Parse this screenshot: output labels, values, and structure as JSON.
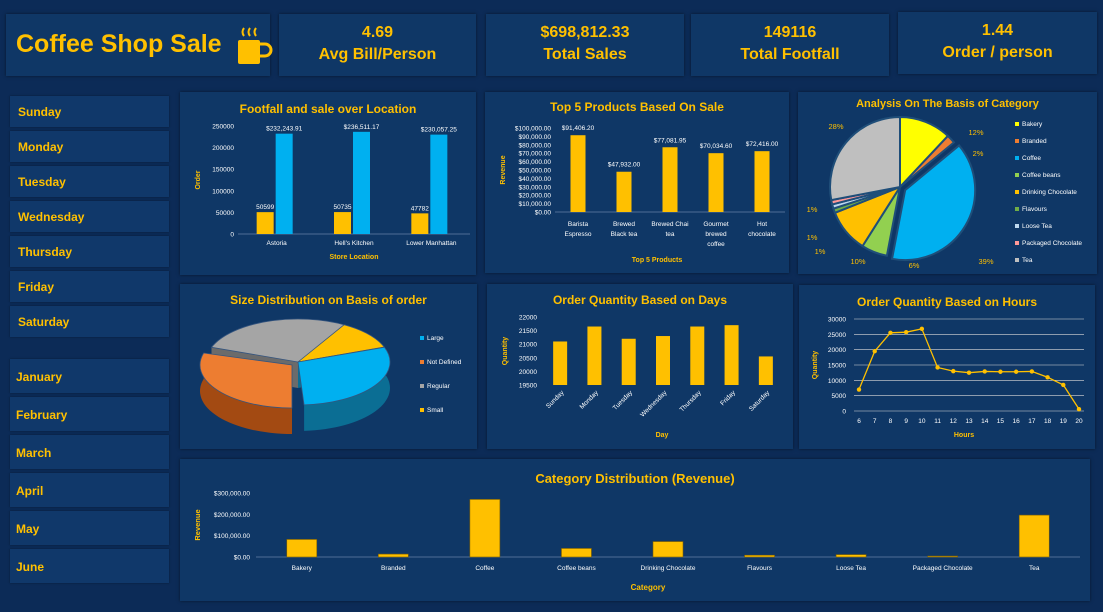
{
  "header": {
    "title": "Coffee Shop Sale",
    "cup_icon": "coffee-cup-icon"
  },
  "kpis": [
    {
      "value": "4.69",
      "label": "Avg Bill/Person"
    },
    {
      "value": "$698,812.33",
      "label": "Total Sales"
    },
    {
      "value": "149116",
      "label": "Total Footfall"
    },
    {
      "value": "1.44",
      "label": "Order / person"
    }
  ],
  "days_slicer": [
    "Sunday",
    "Monday",
    "Tuesday",
    "Wednesday",
    "Thursday",
    "Friday",
    "Saturday"
  ],
  "months_slicer": [
    "January",
    "February",
    "March",
    "April",
    "May",
    "June"
  ],
  "colors": {
    "gold": "#ffc000",
    "blue": "#00b0f0",
    "panel": "#0f3766",
    "bg": "#0c2b57"
  },
  "chart_data": [
    {
      "id": "footfall",
      "type": "bar",
      "title": "Footfall and sale over Location",
      "xlabel": "Store Location",
      "ylabel": "Order",
      "categories": [
        "Astoria",
        "Hell's Kitchen",
        "Lower Manhattan"
      ],
      "series": [
        {
          "values": [
            50599,
            50735,
            47782
          ],
          "labels": [
            "50599",
            "50735",
            "47782"
          ]
        },
        {
          "values": [
            232243.91,
            236511.17,
            230057.25
          ],
          "labels": [
            "$232,243.91",
            "$236,511.17",
            "$230,057.25"
          ]
        }
      ],
      "yticks": [
        "0",
        "50000",
        "100000",
        "150000",
        "200000",
        "250000"
      ],
      "ylim": [
        0,
        250000
      ]
    },
    {
      "id": "top5",
      "type": "bar",
      "title": "Top 5 Products Based On Sale",
      "xlabel": "Top 5 Products",
      "ylabel": "Revenue",
      "categories": [
        [
          "Barista",
          "Espresso"
        ],
        [
          "Brewed",
          "Black tea"
        ],
        [
          "Brewed Chai",
          "tea"
        ],
        [
          "Gourmet",
          "brewed",
          "coffee"
        ],
        [
          "Hot",
          "chocolate"
        ]
      ],
      "values": [
        91406.2,
        47932.0,
        77081.95,
        70034.6,
        72416.0
      ],
      "labels": [
        "$91,406.20",
        "$47,932.00",
        "$77,081.95",
        "$70,034.60",
        "$72,416.00"
      ],
      "yticks": [
        "$0.00",
        "$10,000.00",
        "$20,000.00",
        "$30,000.00",
        "$40,000.00",
        "$50,000.00",
        "$60,000.00",
        "$70,000.00",
        "$80,000.00",
        "$90,000.00",
        "$100,000.00"
      ],
      "ylim": [
        0,
        100000
      ]
    },
    {
      "id": "category_pie",
      "type": "pie",
      "title": "Analysis On The Basis of Category",
      "categories": [
        "Bakery",
        "Branded",
        "Coffee",
        "Coffee beans",
        "Drinking Chocolate",
        "Flavours",
        "Loose Tea",
        "Packaged Chocolate",
        "Tea"
      ],
      "values": [
        12,
        2,
        39,
        6,
        10,
        1,
        1,
        1,
        28
      ],
      "labels": [
        "12%",
        "2%",
        "39%",
        "6%",
        "10%",
        "1%",
        "1%",
        "1%",
        "28%"
      ],
      "colors": [
        "#ffff00",
        "#ed7d31",
        "#00b0f0",
        "#92d050",
        "#ffc000",
        "#70ad47",
        "#bdd7ee",
        "#ff9999",
        "#bfbfbf"
      ],
      "legend": "right"
    },
    {
      "id": "size_pie",
      "type": "pie",
      "title": "Size Distribution on Basis of order",
      "categories": [
        "Large",
        "Not Defined",
        "Regular",
        "Small"
      ],
      "values": [
        29.5,
        29.5,
        30,
        11
      ],
      "colors": [
        "#00b0f0",
        "#ed7d31",
        "#a5a5a5",
        "#ffc000"
      ],
      "legend": "right"
    },
    {
      "id": "days",
      "type": "bar",
      "title": "Order Quantity Based on Days",
      "xlabel": "Day",
      "ylabel": "Quantity",
      "categories": [
        "Sunday",
        "Monday",
        "Tuesday",
        "Wednesday",
        "Thursday",
        "Friday",
        "Saturday"
      ],
      "values": [
        21100,
        21650,
        21200,
        21300,
        21650,
        21700,
        20550
      ],
      "yticks": [
        "19500",
        "20000",
        "20500",
        "21000",
        "21500",
        "22000"
      ],
      "ylim": [
        19500,
        22000
      ]
    },
    {
      "id": "hours",
      "type": "line",
      "title": "Order Quantity Based on Hours",
      "xlabel": "Hours",
      "ylabel": "Quantity",
      "categories": [
        "6",
        "7",
        "8",
        "9",
        "10",
        "11",
        "12",
        "13",
        "14",
        "15",
        "16",
        "17",
        "18",
        "19",
        "20"
      ],
      "values": [
        7000,
        19500,
        25500,
        25700,
        26800,
        14200,
        13000,
        12500,
        12900,
        12800,
        12800,
        12900,
        11000,
        8500,
        600
      ],
      "yticks": [
        "0",
        "5000",
        "10000",
        "15000",
        "20000",
        "25000",
        "30000"
      ],
      "ylim": [
        0,
        30000
      ]
    },
    {
      "id": "category_rev",
      "type": "bar",
      "title": "Category Distribution (Revenue)",
      "xlabel": "Category",
      "ylabel": "Revenue",
      "categories": [
        "Bakery",
        "Branded",
        "Coffee",
        "Coffee beans",
        "Drinking Chocolate",
        "Flavours",
        "Loose Tea",
        "Packaged Chocolate",
        "Tea"
      ],
      "values": [
        82300,
        13600,
        269900,
        40100,
        72400,
        8400,
        11200,
        4400,
        196400
      ],
      "yticks": [
        "$0.00",
        "$100,000.00",
        "$200,000.00",
        "$300,000.00"
      ],
      "ylim": [
        0,
        300000
      ]
    }
  ]
}
